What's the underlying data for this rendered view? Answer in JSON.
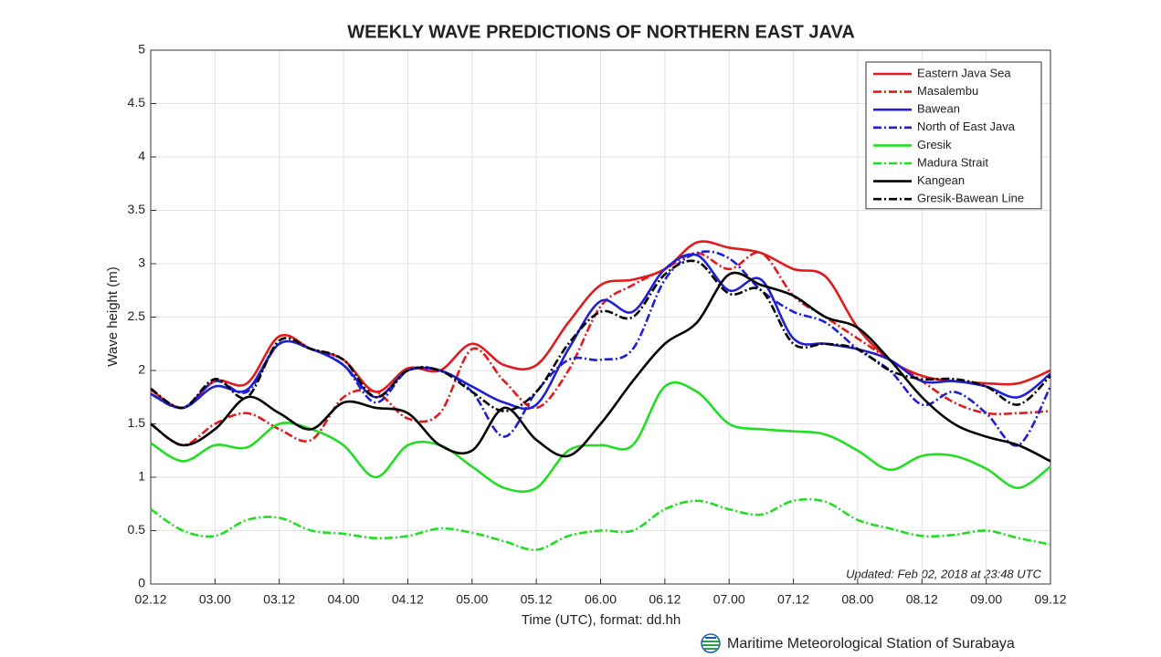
{
  "chart_data": {
    "type": "line",
    "title": "WEEKLY WAVE PREDICTIONS OF NORTHERN EAST JAVA",
    "x_label": "Time (UTC), format: dd.hh",
    "y_label": "Wave height (m)",
    "annotation": "Updated: Feb 02, 2018 at 23:48 UTC",
    "footer": "Maritime Meteorological Station of Surabaya",
    "categories": [
      "02.12",
      null,
      "03.00",
      null,
      "03.12",
      null,
      "04.00",
      null,
      "04.12",
      null,
      "05.00",
      null,
      "05.12",
      null,
      "06.00",
      null,
      "06.12",
      null,
      "07.00",
      null,
      "07.12",
      null,
      "08.00",
      null,
      "08.12",
      null,
      "09.00",
      null,
      "09.12"
    ],
    "ylim": [
      0,
      5
    ],
    "yticks": [
      0,
      0.5,
      1,
      1.5,
      2,
      2.5,
      3,
      3.5,
      4,
      4.5,
      5
    ],
    "grid": true,
    "legend": "upper right",
    "series": [
      {
        "name": "Eastern Java Sea",
        "color": "#e31a1c",
        "dash": "solid",
        "values": [
          1.82,
          1.65,
          1.9,
          1.88,
          2.32,
          2.2,
          2.1,
          1.8,
          2.02,
          2.0,
          2.25,
          2.05,
          2.05,
          2.45,
          2.8,
          2.85,
          2.95,
          3.2,
          3.15,
          3.1,
          2.95,
          2.88,
          2.4,
          2.1,
          1.95,
          1.9,
          1.88,
          1.88,
          2.0
        ]
      },
      {
        "name": "Masalembu",
        "color": "#e31a1c",
        "dash": "dashdot",
        "values": [
          1.5,
          1.3,
          1.5,
          1.6,
          1.45,
          1.35,
          1.75,
          1.8,
          1.55,
          1.6,
          2.2,
          1.9,
          1.65,
          2.0,
          2.6,
          2.8,
          2.95,
          3.1,
          2.95,
          3.1,
          2.7,
          2.5,
          2.3,
          2.1,
          1.9,
          1.7,
          1.6,
          1.6,
          1.62
        ]
      },
      {
        "name": "Bawean",
        "color": "#1f1fd6",
        "dash": "solid",
        "values": [
          1.78,
          1.65,
          1.85,
          1.82,
          2.25,
          2.2,
          2.05,
          1.75,
          2.0,
          2.0,
          1.85,
          1.7,
          1.68,
          2.2,
          2.65,
          2.55,
          2.95,
          3.08,
          2.75,
          2.85,
          2.3,
          2.25,
          2.2,
          2.1,
          1.9,
          1.9,
          1.85,
          1.75,
          1.97
        ]
      },
      {
        "name": "North of East Java",
        "color": "#1f1fd6",
        "dash": "dashdot",
        "values": [
          1.78,
          1.65,
          1.9,
          1.8,
          2.25,
          2.2,
          2.05,
          1.7,
          2.0,
          2.0,
          1.8,
          1.38,
          1.8,
          2.1,
          2.1,
          2.2,
          2.85,
          3.1,
          3.05,
          2.75,
          2.55,
          2.45,
          2.2,
          2.0,
          1.68,
          1.8,
          1.6,
          1.3,
          1.85
        ]
      },
      {
        "name": "Gresik",
        "color": "#22dd22",
        "dash": "solid",
        "values": [
          1.32,
          1.15,
          1.3,
          1.28,
          1.5,
          1.45,
          1.3,
          1.0,
          1.3,
          1.3,
          1.1,
          0.9,
          0.9,
          1.25,
          1.3,
          1.3,
          1.85,
          1.8,
          1.5,
          1.45,
          1.43,
          1.4,
          1.25,
          1.07,
          1.2,
          1.2,
          1.08,
          0.9,
          1.1
        ]
      },
      {
        "name": "Madura Strait",
        "color": "#22dd22",
        "dash": "dashdot",
        "values": [
          0.7,
          0.5,
          0.45,
          0.6,
          0.62,
          0.5,
          0.47,
          0.43,
          0.45,
          0.52,
          0.48,
          0.4,
          0.32,
          0.45,
          0.5,
          0.5,
          0.7,
          0.78,
          0.7,
          0.65,
          0.78,
          0.77,
          0.6,
          0.52,
          0.45,
          0.46,
          0.5,
          0.43,
          0.37
        ]
      },
      {
        "name": "Kangean",
        "color": "#000000",
        "dash": "solid",
        "values": [
          1.5,
          1.3,
          1.45,
          1.75,
          1.6,
          1.45,
          1.7,
          1.65,
          1.6,
          1.3,
          1.25,
          1.65,
          1.35,
          1.2,
          1.5,
          1.9,
          2.25,
          2.45,
          2.9,
          2.8,
          2.7,
          2.5,
          2.4,
          2.1,
          1.75,
          1.5,
          1.38,
          1.3,
          1.15
        ]
      },
      {
        "name": "Gresik-Bawean Line",
        "color": "#000000",
        "dash": "dashdot",
        "values": [
          1.83,
          1.65,
          1.92,
          1.75,
          2.28,
          2.2,
          2.1,
          1.75,
          2.0,
          2.0,
          1.8,
          1.62,
          1.8,
          2.25,
          2.55,
          2.5,
          2.9,
          3.02,
          2.72,
          2.75,
          2.25,
          2.25,
          2.2,
          2.0,
          1.92,
          1.92,
          1.85,
          1.68,
          1.95
        ]
      }
    ]
  }
}
